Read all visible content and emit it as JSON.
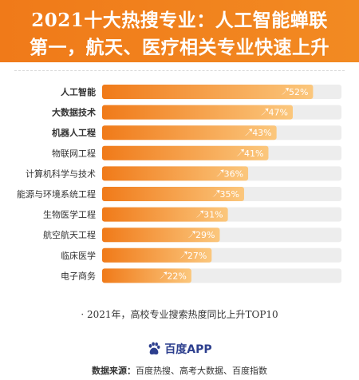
{
  "header": {
    "line1": "2021十大热搜专业：人工智能蝉联",
    "line2": "第一，航天、医疗相关专业快速上升"
  },
  "colors": {
    "header_bg": "#f28a22",
    "bar_start": "#f07a19",
    "bar_end": "#fbc77d",
    "track": "#ededed",
    "label_text": "#333333",
    "value_text": "#ffffff"
  },
  "chart_data": {
    "type": "bar",
    "orientation": "horizontal",
    "categories": [
      "人工智能",
      "大数据技术",
      "机器人工程",
      "物联网工程",
      "计算机科学与技术",
      "能源与环境系统工程",
      "生物医学工程",
      "航空航天工程",
      "临床医学",
      "电子商务"
    ],
    "bold_categories": [
      "人工智能",
      "大数据技术",
      "机器人工程"
    ],
    "values": [
      52,
      47,
      43,
      41,
      36,
      35,
      31,
      29,
      27,
      22
    ],
    "value_labels": [
      "52%",
      "47%",
      "43%",
      "41%",
      "36%",
      "35%",
      "31%",
      "29%",
      "27%",
      "22%"
    ],
    "unit": "%",
    "track_max": 59,
    "grid": false
  },
  "note": "· 2021年，高校专业搜索热度同比上升TOP10",
  "logo": {
    "icon": "baidu-paw-icon",
    "text": "百度APP"
  },
  "source": {
    "label": "数据来源：",
    "text": "百度热搜、高考大数据、百度指数"
  }
}
